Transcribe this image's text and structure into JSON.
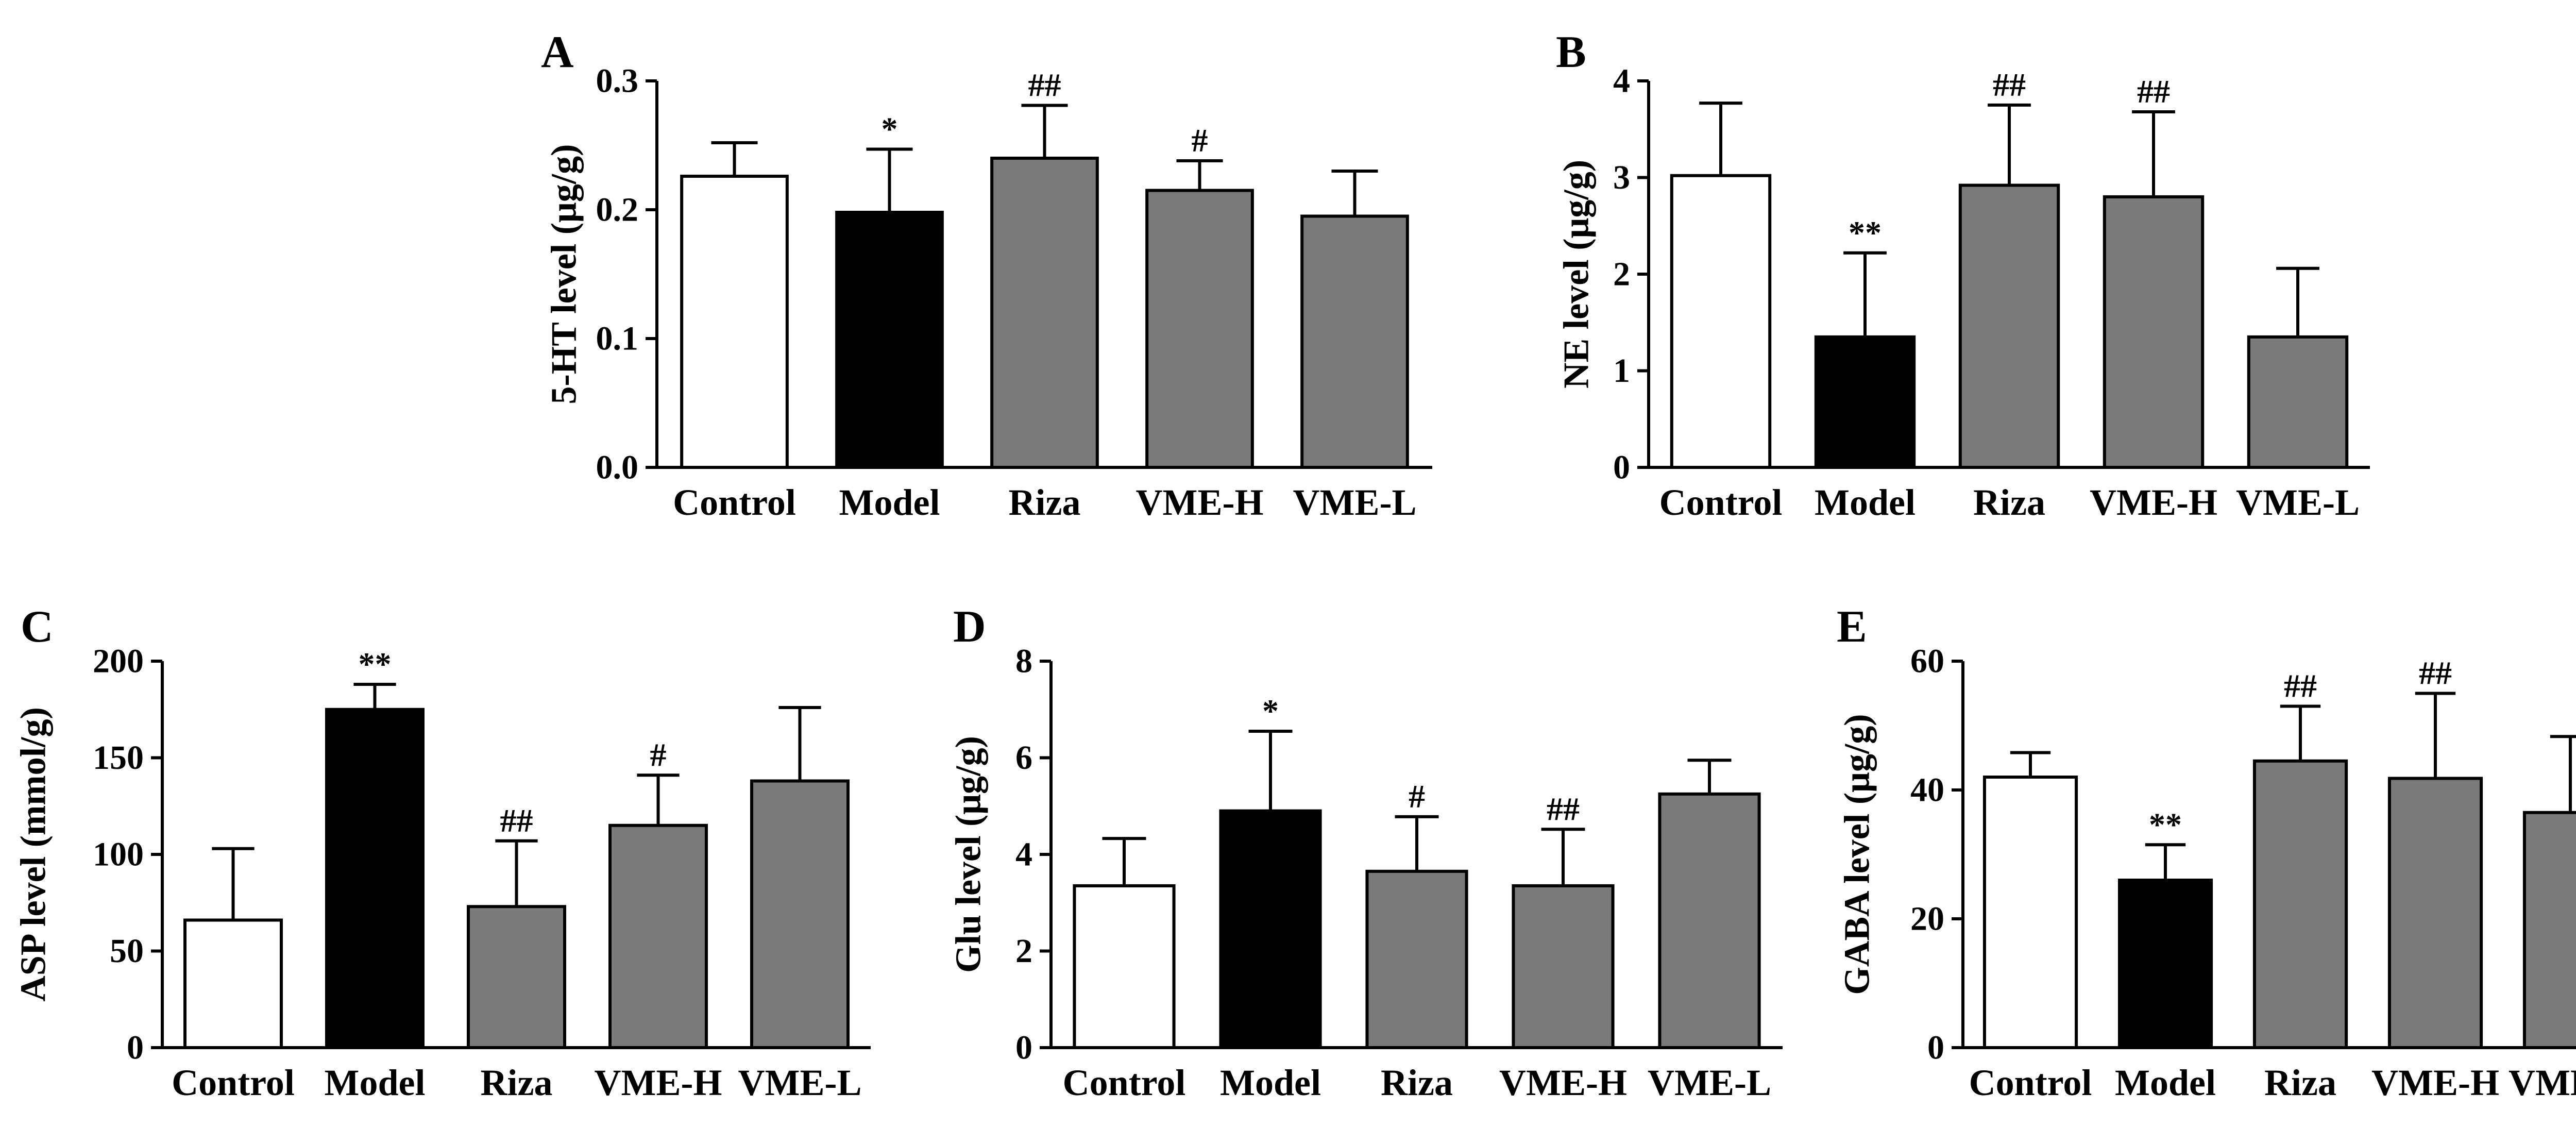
{
  "chart_data": [
    {
      "type": "bar",
      "panel": "A",
      "ylabel": "5-HT level (μg/g)",
      "ylim": [
        0,
        0.3
      ],
      "yticks": [
        0.0,
        0.1,
        0.2,
        0.3
      ],
      "ytick_labels": [
        "0.0",
        "0.1",
        "0.2",
        "0.3"
      ],
      "categories": [
        "Control",
        "Model",
        "Riza",
        "VME-H",
        "VME-L"
      ],
      "values": [
        0.226,
        0.198,
        0.24,
        0.215,
        0.195
      ],
      "errors": [
        0.026,
        0.049,
        0.041,
        0.023,
        0.035
      ],
      "annotations": [
        "",
        "*",
        "##",
        "#",
        ""
      ]
    },
    {
      "type": "bar",
      "panel": "B",
      "ylabel": "NE level (μg/g)",
      "ylim": [
        0,
        4
      ],
      "yticks": [
        0,
        1,
        2,
        3,
        4
      ],
      "ytick_labels": [
        "0",
        "1",
        "2",
        "3",
        "4"
      ],
      "categories": [
        "Control",
        "Model",
        "Riza",
        "VME-H",
        "VME-L"
      ],
      "values": [
        3.02,
        1.35,
        2.92,
        2.8,
        1.35
      ],
      "errors": [
        0.75,
        0.87,
        0.83,
        0.88,
        0.71
      ],
      "annotations": [
        "",
        "**",
        "##",
        "##",
        ""
      ]
    },
    {
      "type": "bar",
      "panel": "C",
      "ylabel": "ASP level (mmol/g)",
      "ylim": [
        0,
        200
      ],
      "yticks": [
        0,
        50,
        100,
        150,
        200
      ],
      "ytick_labels": [
        "0",
        "50",
        "100",
        "150",
        "200"
      ],
      "categories": [
        "Control",
        "Model",
        "Riza",
        "VME-H",
        "VME-L"
      ],
      "values": [
        66,
        175,
        73,
        115,
        138
      ],
      "errors": [
        37,
        13,
        34,
        26,
        38
      ],
      "annotations": [
        "",
        "**",
        "##",
        "#",
        ""
      ]
    },
    {
      "type": "bar",
      "panel": "D",
      "ylabel": "Glu level (μg/g)",
      "ylim": [
        0,
        8
      ],
      "yticks": [
        0,
        2,
        4,
        6,
        8
      ],
      "ytick_labels": [
        "0",
        "2",
        "4",
        "6",
        "8"
      ],
      "categories": [
        "Control",
        "Model",
        "Riza",
        "VME-H",
        "VME-L"
      ],
      "values": [
        3.35,
        4.9,
        3.65,
        3.35,
        5.25
      ],
      "errors": [
        0.98,
        1.65,
        1.13,
        1.17,
        0.7
      ],
      "annotations": [
        "",
        "*",
        "#",
        "##",
        ""
      ]
    },
    {
      "type": "bar",
      "panel": "E",
      "ylabel": "GABA level (μg/g)",
      "ylim": [
        0,
        60
      ],
      "yticks": [
        0,
        20,
        40,
        60
      ],
      "ytick_labels": [
        "0",
        "20",
        "40",
        "60"
      ],
      "categories": [
        "Control",
        "Model",
        "Riza",
        "VME-H",
        "VME-L"
      ],
      "values": [
        42,
        26,
        44.5,
        41.8,
        36.5
      ],
      "errors": [
        3.8,
        5.5,
        8.5,
        13.2,
        11.8
      ],
      "annotations": [
        "",
        "**",
        "##",
        "##",
        ""
      ]
    }
  ],
  "colors": {
    "control_fill": "#ffffff",
    "model_fill": "#000000",
    "treatment_fill": "#7a7a7a",
    "outline": "#000000"
  }
}
